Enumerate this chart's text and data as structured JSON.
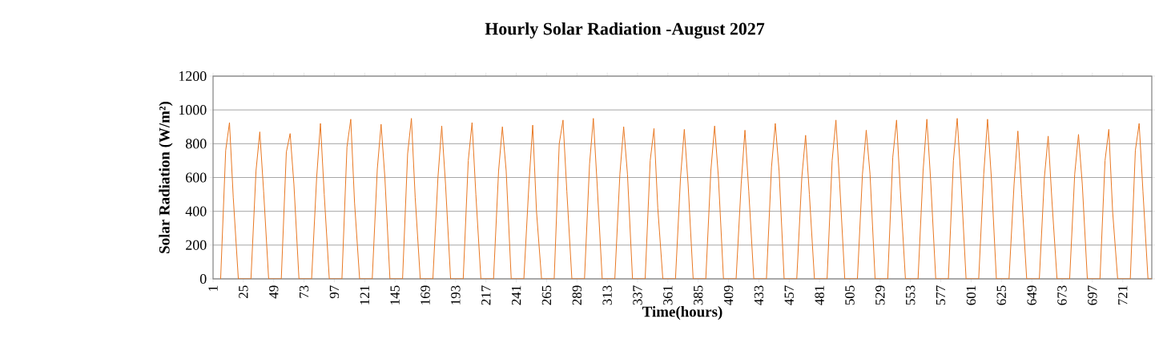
{
  "chart_data": {
    "type": "line",
    "title": "Hourly Solar Radiation -August 2027",
    "xlabel": "Time(hours)",
    "ylabel": "Solar Radiation (W/m²)",
    "x": [
      7,
      11,
      14,
      17,
      21,
      31,
      35,
      38,
      41,
      45,
      55,
      59,
      62,
      65,
      69,
      79,
      83,
      86,
      89,
      93,
      103,
      107,
      110,
      113,
      117,
      127,
      131,
      134,
      137,
      141,
      151,
      155,
      158,
      161,
      165,
      175,
      179,
      182,
      185,
      189,
      199,
      203,
      206,
      209,
      213,
      223,
      227,
      230,
      233,
      237,
      247,
      251,
      254,
      257,
      261,
      271,
      275,
      278,
      281,
      285,
      295,
      299,
      302,
      305,
      309,
      319,
      323,
      326,
      329,
      333,
      343,
      347,
      350,
      353,
      357,
      367,
      371,
      374,
      377,
      381,
      391,
      395,
      398,
      401,
      405,
      415,
      419,
      422,
      425,
      429,
      439,
      443,
      446,
      449,
      453,
      463,
      467,
      470,
      473,
      477,
      487,
      491,
      494,
      497,
      501,
      511,
      515,
      518,
      521,
      525,
      535,
      539,
      542,
      545,
      549,
      559,
      563,
      566,
      569,
      573,
      583,
      587,
      590,
      593,
      597,
      607,
      611,
      614,
      617,
      621,
      631,
      635,
      638,
      641,
      645,
      655,
      659,
      662,
      665,
      669,
      679,
      683,
      686,
      689,
      693,
      703,
      707,
      710,
      713,
      717,
      727,
      731,
      734,
      737,
      741,
      744
    ],
    "series": [
      {
        "color": "#e87722",
        "values": [
          0,
          760,
          925,
          480,
          0,
          0,
          640,
          870,
          520,
          0,
          0,
          750,
          860,
          560,
          0,
          0,
          600,
          920,
          500,
          0,
          0,
          780,
          945,
          450,
          0,
          0,
          650,
          915,
          600,
          0,
          0,
          740,
          950,
          480,
          0,
          0,
          600,
          905,
          560,
          0,
          0,
          700,
          925,
          500,
          0,
          0,
          640,
          900,
          640,
          0,
          0,
          560,
          910,
          400,
          0,
          0,
          800,
          940,
          520,
          0,
          0,
          680,
          950,
          560,
          0,
          0,
          620,
          900,
          620,
          0,
          0,
          700,
          890,
          420,
          0,
          0,
          600,
          885,
          560,
          0,
          0,
          640,
          905,
          600,
          0,
          0,
          560,
          880,
          520,
          0,
          0,
          660,
          920,
          640,
          0,
          0,
          600,
          850,
          500,
          0,
          0,
          700,
          940,
          560,
          0,
          0,
          620,
          880,
          620,
          0,
          0,
          720,
          940,
          520,
          0,
          0,
          640,
          945,
          580,
          0,
          0,
          700,
          950,
          580,
          0,
          0,
          620,
          945,
          600,
          0,
          0,
          560,
          875,
          500,
          0,
          0,
          600,
          845,
          460,
          0,
          0,
          620,
          855,
          560,
          0,
          0,
          700,
          885,
          400,
          0,
          0,
          760,
          920,
          520,
          0,
          0
        ]
      }
    ],
    "xlim": [
      1,
      744
    ],
    "xticks": [
      1,
      25,
      49,
      73,
      97,
      121,
      145,
      169,
      193,
      217,
      241,
      265,
      289,
      313,
      337,
      361,
      385,
      409,
      433,
      457,
      481,
      505,
      529,
      553,
      577,
      601,
      625,
      649,
      673,
      697,
      721
    ],
    "ylim": [
      0,
      1200
    ],
    "yticks": [
      0,
      200,
      400,
      600,
      800,
      1000,
      1200
    ],
    "grid": "y",
    "marker": "none",
    "line_style": "solid"
  }
}
